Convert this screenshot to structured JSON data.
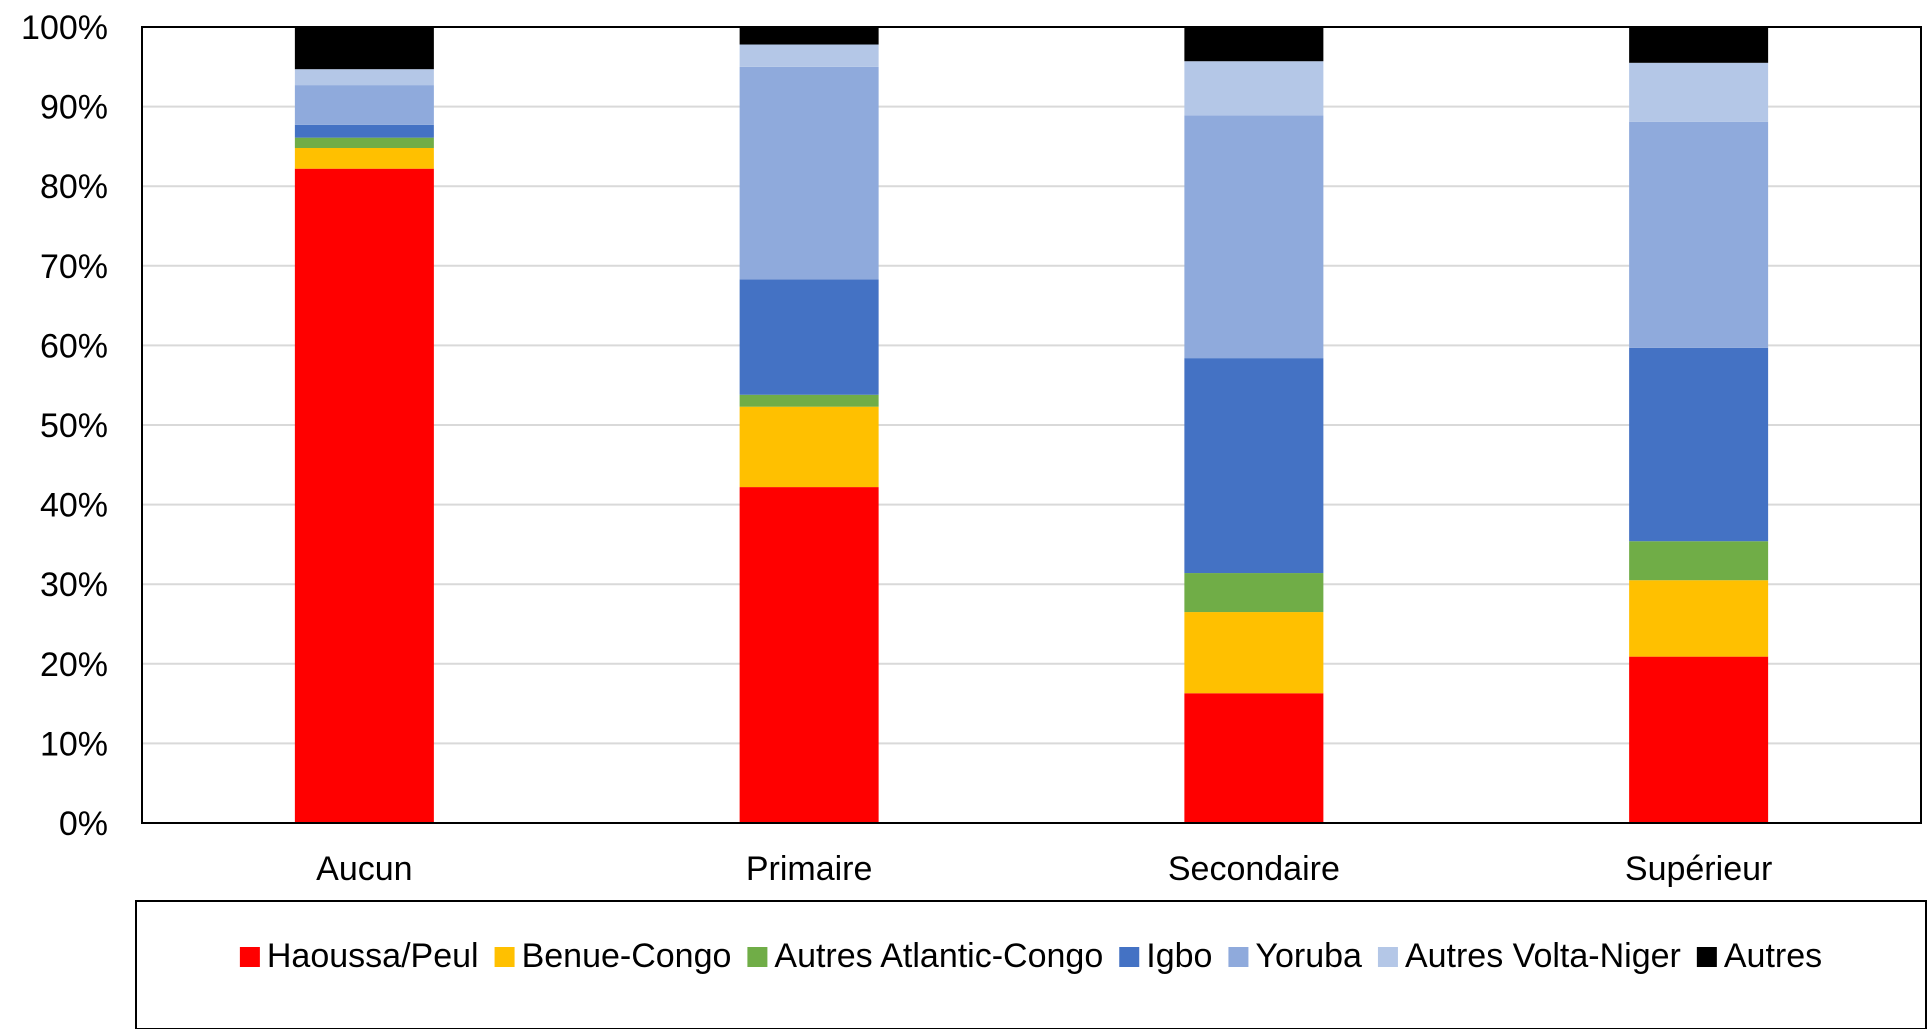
{
  "chart_data": {
    "type": "bar",
    "stacked": true,
    "percent": true,
    "categories": [
      "Aucun",
      "Primaire",
      "Secondaire",
      "Supérieur"
    ],
    "series": [
      {
        "name": "Haoussa/Peul",
        "color": "#FF0000",
        "values": [
          82.2,
          42.2,
          16.3,
          20.9
        ]
      },
      {
        "name": "Benue-Congo",
        "color": "#FFC000",
        "values": [
          2.6,
          10.1,
          10.2,
          9.6
        ]
      },
      {
        "name": "Autres Atlantic-Congo",
        "color": "#70AD47",
        "values": [
          1.3,
          1.5,
          4.9,
          4.9
        ]
      },
      {
        "name": "Igbo",
        "color": "#4472C4",
        "values": [
          1.6,
          14.5,
          27.0,
          24.3
        ]
      },
      {
        "name": "Yoruba",
        "color": "#8FAADC",
        "values": [
          5.0,
          26.7,
          30.5,
          28.4
        ]
      },
      {
        "name": "Autres Volta-Niger",
        "color": "#B4C7E7",
        "values": [
          2.0,
          2.8,
          6.8,
          7.4
        ]
      },
      {
        "name": "Autres",
        "color": "#000000",
        "values": [
          5.3,
          2.2,
          4.3,
          4.5
        ]
      }
    ],
    "yticks": [
      "0%",
      "10%",
      "20%",
      "30%",
      "40%",
      "50%",
      "60%",
      "70%",
      "80%",
      "90%",
      "100%"
    ],
    "ylim": [
      0,
      100
    ],
    "title": "",
    "xlabel": "",
    "ylabel": "",
    "grid": true,
    "legend_position": "bottom"
  }
}
